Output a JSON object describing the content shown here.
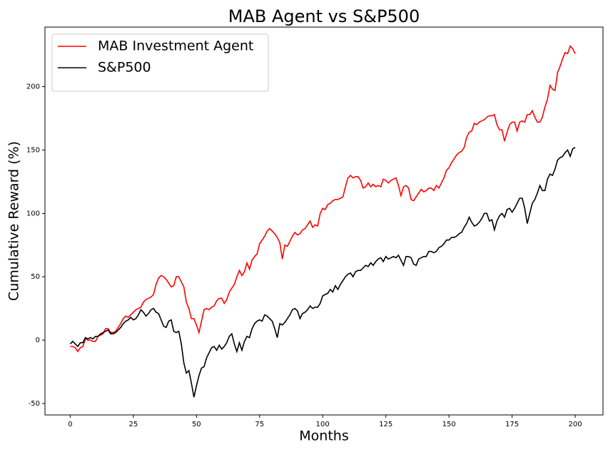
{
  "chart_data": {
    "type": "line",
    "title": "MAB Agent vs S&P500",
    "xlabel": "Months",
    "ylabel": "Cumulative Reward (%)",
    "xlim": [
      -10,
      211
    ],
    "ylim": [
      -59,
      247
    ],
    "xticks": [
      0,
      25,
      50,
      75,
      100,
      125,
      150,
      175,
      200
    ],
    "yticks": [
      -50,
      0,
      50,
      100,
      150,
      200
    ],
    "legend": "upper left",
    "x": [
      0,
      1,
      2,
      3,
      4,
      5,
      6,
      7,
      8,
      9,
      10,
      11,
      12,
      13,
      14,
      15,
      16,
      17,
      18,
      19,
      20,
      21,
      22,
      23,
      24,
      25,
      26,
      27,
      28,
      29,
      30,
      31,
      32,
      33,
      34,
      35,
      36,
      37,
      38,
      39,
      40,
      41,
      42,
      43,
      44,
      45,
      46,
      47,
      48,
      49,
      50,
      51,
      52,
      53,
      54,
      55,
      56,
      57,
      58,
      59,
      60,
      61,
      62,
      63,
      64,
      65,
      66,
      67,
      68,
      69,
      70,
      71,
      72,
      73,
      74,
      75,
      76,
      77,
      78,
      79,
      80,
      81,
      82,
      83,
      84,
      85,
      86,
      87,
      88,
      89,
      90,
      91,
      92,
      93,
      94,
      95,
      96,
      97,
      98,
      99,
      100,
      101,
      102,
      103,
      104,
      105,
      106,
      107,
      108,
      109,
      110,
      111,
      112,
      113,
      114,
      115,
      116,
      117,
      118,
      119,
      120,
      121,
      122,
      123,
      124,
      125,
      126,
      127,
      128,
      129,
      130,
      131,
      132,
      133,
      134,
      135,
      136,
      137,
      138,
      139,
      140,
      141,
      142,
      143,
      144,
      145,
      146,
      147,
      148,
      149,
      150,
      151,
      152,
      153,
      154,
      155,
      156,
      157,
      158,
      159,
      160,
      161,
      162,
      163,
      164,
      165,
      166,
      167,
      168,
      169,
      170,
      171,
      172,
      173,
      174,
      175,
      176,
      177,
      178,
      179,
      180,
      181,
      182,
      183,
      184,
      185,
      186,
      187,
      188,
      189,
      190,
      191,
      192,
      193,
      194,
      195,
      196,
      197,
      198,
      199,
      200
    ],
    "series": [
      {
        "name": "MAB Investment Agent",
        "color": "#ff0000",
        "values": [
          -5,
          -5,
          -6,
          -9,
          -6,
          -5,
          1,
          0,
          0,
          -1,
          -1,
          3,
          4,
          5,
          9,
          9,
          6,
          6,
          7,
          10,
          13,
          17,
          19,
          18,
          20,
          22,
          24,
          25,
          26,
          30,
          32,
          33,
          34,
          36,
          44,
          49,
          51,
          50,
          48,
          45,
          42,
          43,
          50,
          50,
          46,
          42,
          30,
          25,
          17,
          17,
          12,
          6,
          15,
          24,
          25,
          24,
          26,
          27,
          31,
          33,
          33,
          29,
          32,
          38,
          41,
          44,
          50,
          55,
          51,
          54,
          61,
          56,
          63,
          66,
          68,
          76,
          79,
          82,
          86,
          88,
          86,
          84,
          81,
          77,
          64,
          75,
          74,
          78,
          82,
          85,
          83,
          84,
          87,
          88,
          91,
          94,
          89,
          91,
          90,
          100,
          104,
          103,
          107,
          108,
          110,
          111,
          111,
          112,
          113,
          121,
          128,
          130,
          128,
          129,
          129,
          126,
          120,
          121,
          124,
          121,
          123,
          121,
          122,
          121,
          127,
          126,
          124,
          126,
          127,
          128,
          122,
          114,
          121,
          122,
          120,
          111,
          110,
          113,
          116,
          119,
          117,
          118,
          120,
          120,
          118,
          122,
          120,
          124,
          128,
          134,
          136,
          140,
          143,
          146,
          148,
          149,
          152,
          160,
          164,
          165,
          171,
          170,
          172,
          173,
          174,
          176,
          177,
          177,
          178,
          170,
          166,
          166,
          157,
          164,
          170,
          172,
          172,
          165,
          172,
          173,
          172,
          178,
          178,
          181,
          176,
          172,
          172,
          176,
          184,
          190,
          201,
          198,
          197,
          211,
          216,
          222,
          227,
          226,
          232,
          230,
          226
        ]
      },
      {
        "name": "S&P500",
        "color": "#000000",
        "values": [
          -3,
          -1,
          -3,
          -5,
          -2,
          -2,
          2,
          1,
          2,
          1,
          3,
          3,
          5,
          6,
          7,
          8,
          5,
          5,
          6,
          8,
          10,
          13,
          15,
          16,
          18,
          16,
          17,
          20,
          24,
          22,
          19,
          21,
          24,
          25,
          22,
          21,
          16,
          11,
          10,
          15,
          16,
          7,
          6,
          7,
          -3,
          -18,
          -26,
          -24,
          -34,
          -45,
          -36,
          -28,
          -22,
          -21,
          -14,
          -10,
          -6,
          -5,
          -8,
          -4,
          -7,
          -5,
          -2,
          3,
          5,
          -3,
          -9,
          -2,
          -8,
          -1,
          3,
          2,
          9,
          13,
          15,
          16,
          15,
          20,
          19,
          17,
          15,
          9,
          2,
          13,
          12,
          14,
          17,
          20,
          24,
          25,
          23,
          17,
          21,
          22,
          24,
          27,
          25,
          26,
          26,
          29,
          35,
          36,
          37,
          40,
          38,
          43,
          40,
          44,
          47,
          50,
          52,
          53,
          50,
          54,
          55,
          55,
          57,
          59,
          58,
          61,
          59,
          62,
          64,
          65,
          62,
          66,
          64,
          65,
          66,
          65,
          67,
          63,
          59,
          66,
          66,
          65,
          60,
          59,
          64,
          65,
          66,
          66,
          70,
          70,
          69,
          70,
          73,
          74,
          76,
          79,
          79,
          81,
          81,
          82,
          84,
          85,
          89,
          92,
          97,
          93,
          90,
          91,
          93,
          96,
          100,
          100,
          94,
          95,
          87,
          94,
          98,
          100,
          97,
          103,
          104,
          101,
          104,
          108,
          112,
          112,
          104,
          92,
          100,
          108,
          111,
          116,
          122,
          118,
          118,
          127,
          131,
          130,
          135,
          142,
          144,
          145,
          148,
          150,
          145,
          151,
          152
        ]
      }
    ]
  }
}
